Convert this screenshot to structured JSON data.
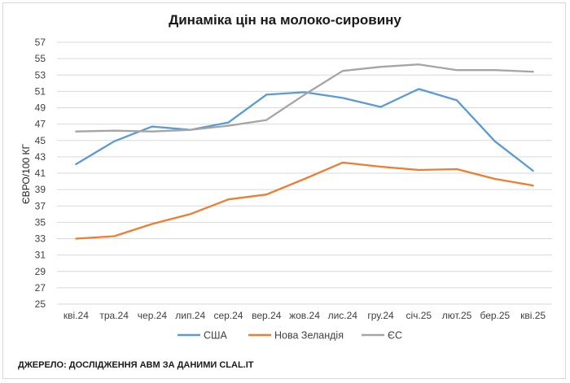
{
  "chart_data": {
    "type": "line",
    "title": "Динаміка цін на молоко-сировину",
    "ylabel": "ЄВРО/100 КГ",
    "xlabel": "",
    "ylim": [
      25,
      57
    ],
    "yticks": [
      25,
      27,
      29,
      31,
      33,
      35,
      37,
      39,
      41,
      43,
      45,
      47,
      49,
      51,
      53,
      55,
      57
    ],
    "grid": true,
    "legend_position": "bottom",
    "categories": [
      "кві.24",
      "тра.24",
      "чер.24",
      "лип.24",
      "сер.24",
      "вер.24",
      "жов.24",
      "лис.24",
      "гру.24",
      "січ.25",
      "лют.25",
      "бер.25",
      "кві.25"
    ],
    "series": [
      {
        "name": "США",
        "color": "#5b9bd5",
        "values": [
          42.1,
          44.9,
          46.7,
          46.3,
          47.2,
          50.6,
          50.9,
          50.2,
          49.1,
          51.3,
          49.9,
          44.9,
          41.3
        ]
      },
      {
        "name": "Нова Зеландія",
        "color": "#ed7d31",
        "values": [
          33.0,
          33.3,
          34.8,
          36.0,
          37.8,
          38.4,
          40.3,
          42.3,
          41.8,
          41.4,
          41.5,
          40.3,
          39.5
        ]
      },
      {
        "name": "ЄС",
        "color": "#a5a5a5",
        "values": [
          46.1,
          46.2,
          46.1,
          46.3,
          46.8,
          47.5,
          50.6,
          53.5,
          54.0,
          54.3,
          53.6,
          53.6,
          53.4
        ]
      }
    ]
  },
  "source": "ДЖЕРЕЛО: ДОСЛІДЖЕННЯ АВМ ЗА ДАНИМИ CLAL.IT"
}
